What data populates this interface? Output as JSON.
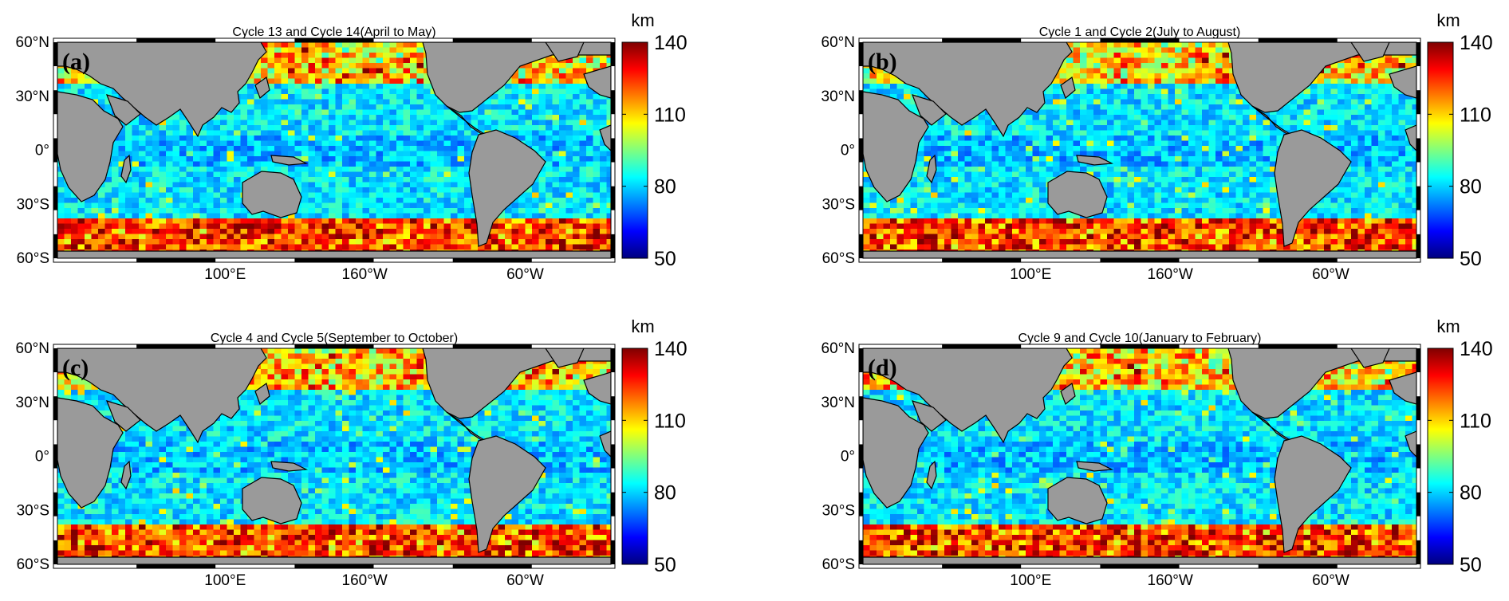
{
  "figure": {
    "panels": [
      {
        "id": "a",
        "letter": "(a)",
        "title": "Cycle 13 and Cycle 14(April to May)",
        "seed": 13
      },
      {
        "id": "b",
        "letter": "(b)",
        "title": "Cycle 1 and Cycle 2(July to August)",
        "seed": 1
      },
      {
        "id": "c",
        "letter": "(c)",
        "title": "Cycle 4 and Cycle 5(September to October)",
        "seed": 4
      },
      {
        "id": "d",
        "letter": "(d)",
        "title": "Cycle 9 and Cycle 10(January to February)",
        "seed": 9
      }
    ],
    "lat_ticks": [
      "60°N",
      "30°N",
      "0°",
      "30°S",
      "60°S"
    ],
    "lon_ticks": [
      "100°E",
      "160°W",
      "60°W"
    ],
    "colorbar": {
      "unit": "km",
      "ticks": [
        "140",
        "110",
        "80",
        "50"
      ],
      "range": [
        50,
        140
      ],
      "colormap": [
        "#00007f",
        "#0000ff",
        "#007fff",
        "#00ffff",
        "#7fff7f",
        "#ffff00",
        "#ff7f00",
        "#ff0000",
        "#7f0000"
      ]
    },
    "colors": {
      "land": "#9a9a9a",
      "coast": "#000000",
      "frame_dark": "#000000",
      "frame_light": "#ffffff"
    }
  }
}
